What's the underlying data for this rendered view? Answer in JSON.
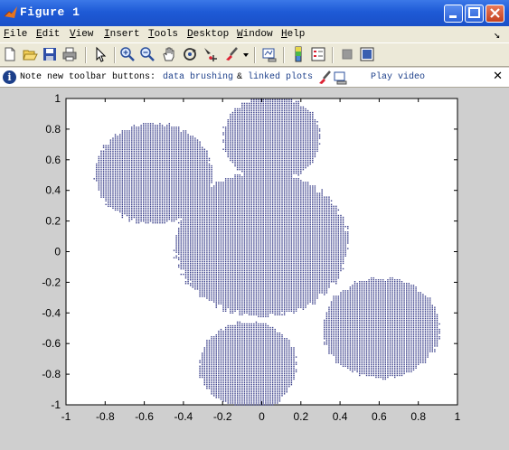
{
  "window": {
    "title": "Figure 1"
  },
  "menu": [
    {
      "label": "File",
      "ul": "F",
      "rest": "ile"
    },
    {
      "label": "Edit",
      "ul": "E",
      "rest": "dit"
    },
    {
      "label": "View",
      "ul": "V",
      "rest": "iew"
    },
    {
      "label": "Insert",
      "ul": "I",
      "rest": "nsert"
    },
    {
      "label": "Tools",
      "ul": "T",
      "rest": "ools"
    },
    {
      "label": "Desktop",
      "ul": "D",
      "rest": "esktop"
    },
    {
      "label": "Window",
      "ul": "W",
      "rest": "indow"
    },
    {
      "label": "Help",
      "ul": "H",
      "rest": "elp"
    }
  ],
  "toolbar_icons": [
    "new-figure-icon",
    "open-icon",
    "save-icon",
    "print-icon",
    "edit-plot-arrow-icon",
    "zoom-in-icon",
    "zoom-out-icon",
    "pan-hand-icon",
    "rotate-3d-icon",
    "data-cursor-icon",
    "brush-icon",
    "link-plot-icon",
    "colorbar-icon",
    "legend-icon",
    "hide-plot-tools-icon",
    "show-plot-tools-icon"
  ],
  "info": {
    "text": "Note new toolbar buttons:",
    "link1": "data brushing",
    "amp": "&",
    "link2": "linked plots",
    "link3": "Play video",
    "close": "✕"
  },
  "chart_data": {
    "type": "scatter",
    "title": "",
    "xlabel": "",
    "ylabel": "",
    "xlim": [
      -1,
      1
    ],
    "ylim": [
      -1,
      1
    ],
    "xticks": [
      "-1",
      "-0.8",
      "-0.6",
      "-0.4",
      "-0.2",
      "0",
      "0.2",
      "0.4",
      "0.6",
      "0.8",
      "1"
    ],
    "yticks": [
      "1",
      "0.8",
      "0.6",
      "0.4",
      "0.2",
      "0",
      "-0.2",
      "-0.4",
      "-0.6",
      "-0.8",
      "-1"
    ],
    "marker_color": "#3a3f8a",
    "grid": false,
    "regions": [
      {
        "cx": -0.55,
        "cy": 0.51,
        "rx": 0.31,
        "ry": 0.34
      },
      {
        "cx": 0.05,
        "cy": 0.74,
        "rx": 0.26,
        "ry": 0.29
      },
      {
        "cx": 0.0,
        "cy": 0.05,
        "rx": 0.46,
        "ry": 0.49
      },
      {
        "cx": 0.61,
        "cy": -0.5,
        "rx": 0.31,
        "ry": 0.34
      },
      {
        "cx": -0.07,
        "cy": -0.74,
        "rx": 0.26,
        "ry": 0.29
      },
      {
        "cx": -0.01,
        "cy": 0.94,
        "rx": 0.08,
        "ry": 0.06
      },
      {
        "cx": 0.02,
        "cy": -0.96,
        "rx": 0.08,
        "ry": 0.05
      }
    ],
    "step": 0.012
  }
}
